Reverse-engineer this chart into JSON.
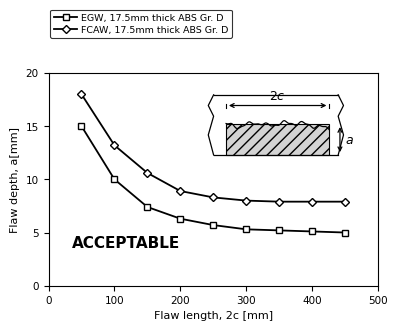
{
  "egw_x": [
    50,
    100,
    150,
    200,
    250,
    300,
    350,
    400,
    450
  ],
  "egw_y": [
    15.0,
    10.0,
    7.4,
    6.3,
    5.7,
    5.3,
    5.2,
    5.1,
    5.0
  ],
  "fcaw_x": [
    50,
    100,
    150,
    200,
    250,
    300,
    350,
    400,
    450
  ],
  "fcaw_y": [
    18.0,
    13.2,
    10.6,
    8.9,
    8.3,
    8.0,
    7.9,
    7.9,
    7.9
  ],
  "egw_label": "EGW, 17.5mm thick ABS Gr. D",
  "fcaw_label": "FCAW, 17.5mm thick ABS Gr. D",
  "xlabel": "Flaw length, 2c [mm]",
  "ylabel": "Flaw depth, a[mm]",
  "xlim": [
    0,
    500
  ],
  "ylim": [
    0.0,
    20.0
  ],
  "xticks": [
    0,
    100,
    200,
    300,
    400,
    500
  ],
  "yticks": [
    0.0,
    5.0,
    10.0,
    15.0,
    20.0
  ],
  "acceptable_text": "ACCEPTABLE",
  "line_color": "#000000",
  "bg_color": "#ffffff"
}
